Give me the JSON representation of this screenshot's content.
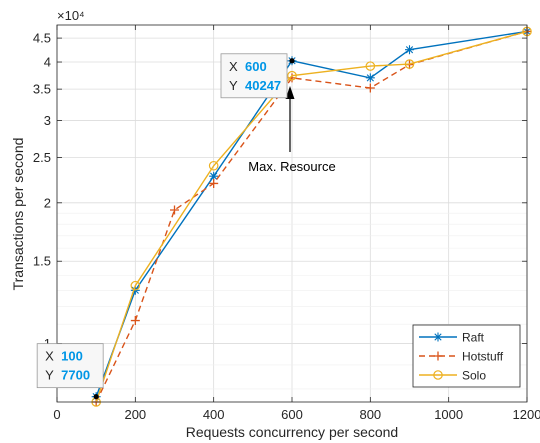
{
  "chart_data": {
    "type": "line",
    "xlabel": "Requests concurrency per second",
    "ylabel": "Transactions per second",
    "y_exponent_label": "×10⁴",
    "y_scale": "log",
    "xlim": [
      0,
      1200
    ],
    "ylim": [
      7500,
      48000
    ],
    "grid": true,
    "legend_position": "bottom-right",
    "x_ticks": [
      0,
      200,
      400,
      600,
      800,
      1000,
      1200
    ],
    "x_tick_labels": [
      "0",
      "200",
      "400",
      "600",
      "800",
      "1000",
      "1200"
    ],
    "y_ticks": [
      10000,
      15000,
      20000,
      25000,
      30000,
      35000,
      40000,
      45000
    ],
    "y_tick_labels": [
      "1",
      "1.5",
      "2",
      "2.5",
      "3",
      "3.5",
      "4",
      "4.5"
    ],
    "series": [
      {
        "name": "Raft",
        "color": "#0072BD",
        "marker": "asterisk",
        "dash": "solid",
        "x": [
          100,
          200,
          400,
          600,
          800,
          900,
          1200
        ],
        "y": [
          7700,
          13000,
          22800,
          40247,
          37000,
          42500,
          46500
        ]
      },
      {
        "name": "Hotstuff",
        "color": "#D95319",
        "marker": "plus",
        "dash": "dashed",
        "x": [
          100,
          200,
          300,
          400,
          600,
          800,
          900,
          1200
        ],
        "y": [
          7500,
          11200,
          19300,
          22000,
          37000,
          35200,
          39500,
          46500
        ]
      },
      {
        "name": "Solo",
        "color": "#EDB120",
        "marker": "circle",
        "dash": "solid",
        "x": [
          100,
          200,
          400,
          600,
          800,
          900,
          1200
        ],
        "y": [
          7500,
          13300,
          24000,
          37400,
          39200,
          39600,
          46500
        ]
      }
    ],
    "datatips": [
      {
        "x_label": "X",
        "x_value": "100",
        "y_label": "Y",
        "y_value": "7700",
        "x": 100,
        "y": 7700
      },
      {
        "x_label": "X",
        "x_value": "600",
        "y_label": "Y",
        "y_value": "40247",
        "x": 600,
        "y": 40247
      }
    ],
    "annotation": {
      "text": "Max. Resource",
      "x": 600,
      "y": 37500
    }
  }
}
